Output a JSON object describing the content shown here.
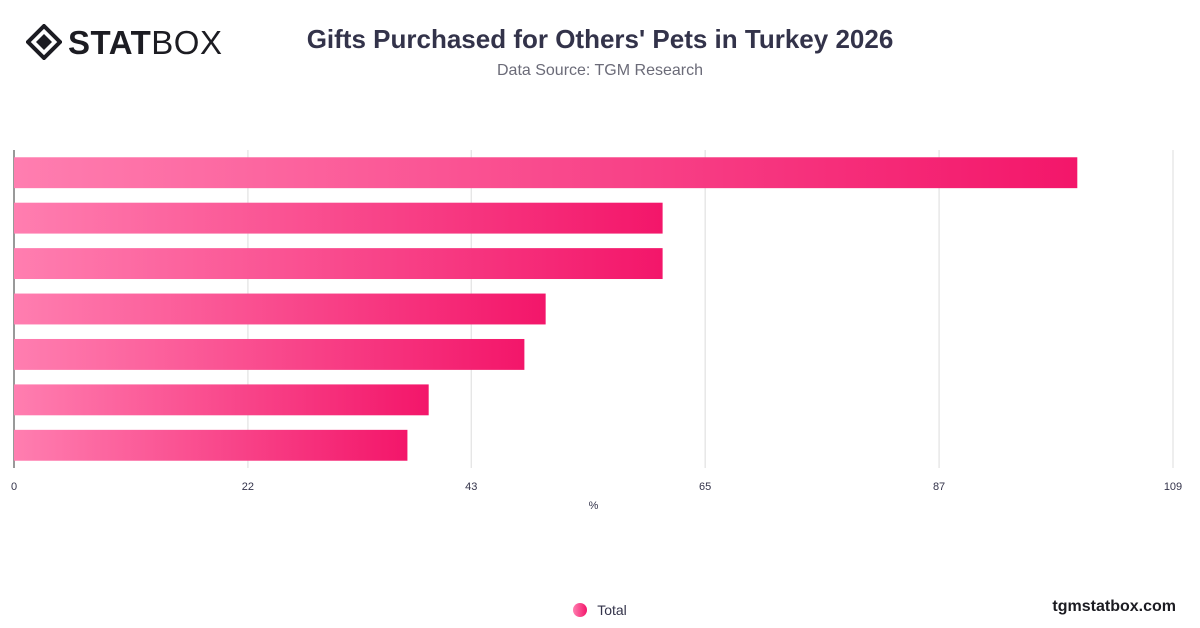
{
  "header": {
    "logo_bold": "STAT",
    "logo_light": "BOX",
    "title": "Gifts Purchased for Others' Pets in Turkey 2026",
    "subtitle": "Data Source: TGM Research"
  },
  "legend": {
    "label": "Total"
  },
  "footer": {
    "brand": "tgmstatbox.com"
  },
  "colors": {
    "bar_start": "#ff7eb0",
    "bar_end": "#f3166a",
    "grid": "#dcdcdc",
    "text": "#33334a"
  },
  "chart_data": {
    "type": "bar",
    "orientation": "horizontal",
    "categories": [
      "",
      "",
      "",
      "",
      "",
      "",
      ""
    ],
    "series": [
      {
        "name": "Total",
        "values": [
          100,
          61,
          61,
          50,
          48,
          39,
          37
        ]
      }
    ],
    "xlabel": "%",
    "xticks": [
      0,
      22,
      43,
      65,
      87,
      109
    ],
    "xlim": [
      0,
      109
    ],
    "grid": true,
    "legend_position": "bottom-center"
  }
}
